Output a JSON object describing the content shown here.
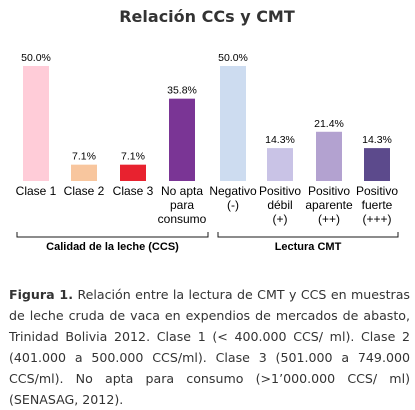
{
  "chart_data": {
    "type": "bar",
    "title": "Relación CCs y CMT",
    "categories": [
      [
        "Clase 1"
      ],
      [
        "Clase 2"
      ],
      [
        "Clase 3"
      ],
      [
        "No apta",
        "para",
        "consumo"
      ],
      [
        "Negativo",
        "(-)"
      ],
      [
        "Positivo",
        "débil",
        "(+)"
      ],
      [
        "Positivo",
        "aparente",
        "(++)"
      ],
      [
        "Positivo",
        "fuerte",
        "(+++)"
      ]
    ],
    "values": [
      50.0,
      7.1,
      7.1,
      35.8,
      50.0,
      14.3,
      21.4,
      14.3
    ],
    "value_labels": [
      "50.0%",
      "7.1%",
      "7.1%",
      "35.8%",
      "50.0%",
      "14.3%",
      "21.4%",
      "14.3%"
    ],
    "colors": [
      "#ffccd8",
      "#f8c69e",
      "#e8222f",
      "#7a3595",
      "#cddcf0",
      "#c9c3e6",
      "#b3a2d0",
      "#5c4a8c"
    ],
    "groups": [
      {
        "label": "Calidad de la leche (CCS)",
        "from": 0,
        "to": 3
      },
      {
        "label": "Lectura CMT",
        "from": 4,
        "to": 7
      }
    ],
    "ylim": [
      0,
      50
    ],
    "grid": false,
    "legend": "none"
  },
  "caption": {
    "label": "Figura 1.",
    "text": "Relación entre la lectura de CMT y CCS en muestras de leche cruda de vaca en expendios de mercados de abasto, Trinidad Bolivia 2012. Clase 1 (< 400.000 CCS/ ml). Clase 2 (401.000 a 500.000 CCS/ml). Clase 3 (501.000 a 749.000 CCS/ml). No apta para consumo (>1’000.000 CCS/ ml) (SENASAG, 2012)."
  }
}
